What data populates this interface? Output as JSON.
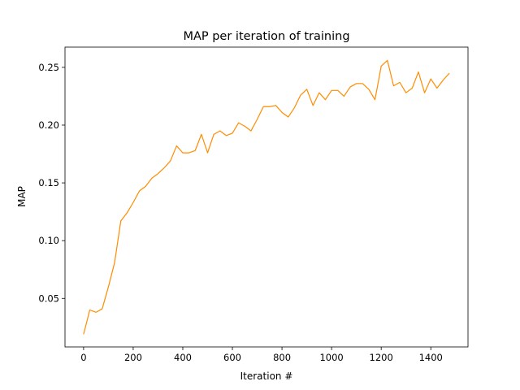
{
  "chart_data": {
    "type": "line",
    "title": "MAP per iteration of training",
    "xlabel": "Iteration #",
    "ylabel": "MAP",
    "xlim": [
      -75,
      1550
    ],
    "ylim": [
      0.008,
      0.2675
    ],
    "xticks": [
      0,
      200,
      400,
      600,
      800,
      1000,
      1200,
      1400
    ],
    "yticks": [
      0.05,
      0.1,
      0.15,
      0.2,
      0.25
    ],
    "xtick_labels": [
      "0",
      "200",
      "400",
      "600",
      "800",
      "1000",
      "1200",
      "1400"
    ],
    "ytick_labels": [
      "0.05",
      "0.10",
      "0.15",
      "0.20",
      "0.25"
    ],
    "grid": false,
    "legend": "none",
    "series": [
      {
        "color": "#ff8c00",
        "x": [
          0,
          25,
          50,
          75,
          100,
          125,
          150,
          175,
          200,
          225,
          250,
          275,
          300,
          325,
          350,
          375,
          400,
          425,
          450,
          475,
          500,
          525,
          550,
          575,
          600,
          625,
          650,
          675,
          700,
          725,
          750,
          775,
          800,
          825,
          850,
          875,
          900,
          925,
          950,
          975,
          1000,
          1025,
          1050,
          1075,
          1100,
          1125,
          1150,
          1175,
          1200,
          1225,
          1250,
          1275,
          1300,
          1325,
          1350,
          1375,
          1400,
          1425,
          1450,
          1475
        ],
        "y": [
          0.019,
          0.04,
          0.038,
          0.041,
          0.06,
          0.081,
          0.117,
          0.124,
          0.133,
          0.143,
          0.147,
          0.154,
          0.158,
          0.163,
          0.169,
          0.182,
          0.176,
          0.176,
          0.178,
          0.192,
          0.176,
          0.192,
          0.195,
          0.191,
          0.193,
          0.202,
          0.199,
          0.195,
          0.205,
          0.216,
          0.216,
          0.217,
          0.211,
          0.207,
          0.215,
          0.226,
          0.231,
          0.217,
          0.228,
          0.222,
          0.23,
          0.23,
          0.225,
          0.233,
          0.236,
          0.236,
          0.231,
          0.222,
          0.251,
          0.256,
          0.234,
          0.237,
          0.228,
          0.232,
          0.246,
          0.228,
          0.24,
          0.232,
          0.239,
          0.245
        ]
      }
    ]
  }
}
